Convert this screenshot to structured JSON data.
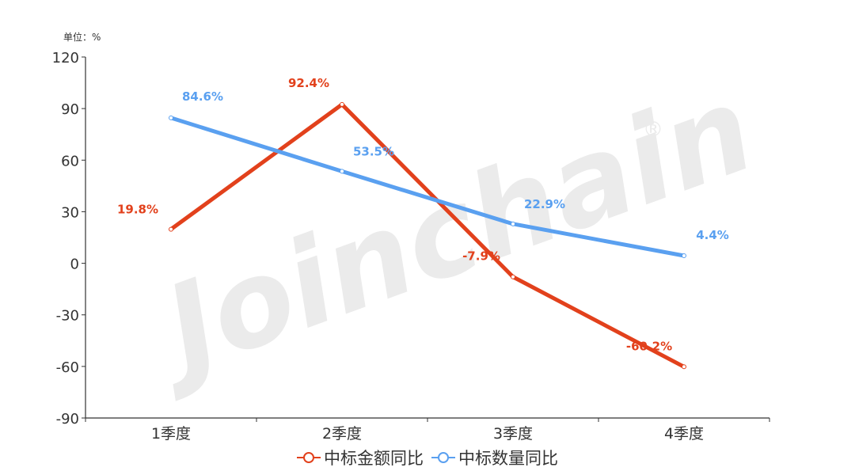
{
  "chart": {
    "unit_label": "单位：%",
    "watermark": "Joinchain",
    "watermark_mark": "®",
    "colors": {
      "amount": "#e2411c",
      "count": "#5aa0f0",
      "axis": "#333333",
      "watermark": "#ebebeb"
    },
    "legend": [
      {
        "label": "中标金额同比",
        "color": "#e2411c"
      },
      {
        "label": "中标数量同比",
        "color": "#5aa0f0"
      }
    ]
  },
  "chart_data": {
    "type": "line",
    "title": "",
    "xlabel": "",
    "ylabel": "单位：%",
    "categories": [
      "1季度",
      "2季度",
      "3季度",
      "4季度"
    ],
    "series": [
      {
        "name": "中标金额同比",
        "values": [
          19.8,
          92.4,
          -7.9,
          -60.2
        ],
        "labels": [
          "19.8%",
          "92.4%",
          "-7.9%",
          "-60.2%"
        ],
        "color": "#e2411c"
      },
      {
        "name": "中标数量同比",
        "values": [
          84.6,
          53.5,
          22.9,
          4.4
        ],
        "labels": [
          "84.6%",
          "53.5%",
          "22.9%",
          "4.4%"
        ],
        "color": "#5aa0f0"
      }
    ],
    "ylim": [
      -90,
      120
    ],
    "yticks": [
      120,
      90,
      60,
      30,
      0,
      -30,
      -60,
      -90
    ],
    "grid": false,
    "legend_position": "bottom"
  }
}
